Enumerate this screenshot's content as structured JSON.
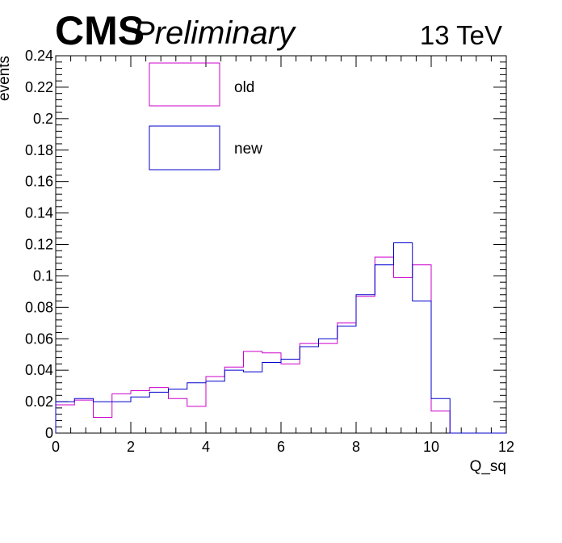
{
  "header": {
    "experiment": "CMS",
    "status": "Preliminary",
    "energy": "13 TeV"
  },
  "chart_data": {
    "type": "histogram-step",
    "xlabel": "Q_sq",
    "ylabel": "events",
    "xlim": [
      0,
      12
    ],
    "ylim": [
      0,
      0.24
    ],
    "x_ticks": [
      "0",
      "2",
      "4",
      "6",
      "8",
      "10",
      "12"
    ],
    "y_ticks": [
      "0",
      "0.02",
      "0.04",
      "0.06",
      "0.08",
      "0.1",
      "0.12",
      "0.14",
      "0.16",
      "0.18",
      "0.2",
      "0.22",
      "0.24"
    ],
    "bin_edges": [
      0,
      0.5,
      1,
      1.5,
      2,
      2.5,
      3,
      3.5,
      4,
      4.5,
      5,
      5.5,
      6,
      6.5,
      7,
      7.5,
      8,
      8.5,
      9,
      9.5,
      10,
      10.5,
      11,
      11.5,
      12
    ],
    "grid": false,
    "legend_position": "top-left",
    "series": [
      {
        "name": "old",
        "color": "#cc00cc",
        "values": [
          0.018,
          0.021,
          0.01,
          0.025,
          0.027,
          0.029,
          0.022,
          0.017,
          0.036,
          0.042,
          0.052,
          0.051,
          0.044,
          0.057,
          0.057,
          0.07,
          0.087,
          0.112,
          0.099,
          0.107,
          0.014,
          0,
          0,
          0
        ]
      },
      {
        "name": "new",
        "color": "#0000cc",
        "values": [
          0.02,
          0.022,
          0.02,
          0.02,
          0.023,
          0.026,
          0.028,
          0.032,
          0.033,
          0.04,
          0.039,
          0.045,
          0.047,
          0.055,
          0.06,
          0.068,
          0.088,
          0.107,
          0.121,
          0.084,
          0.022,
          0,
          0,
          0
        ]
      }
    ]
  }
}
